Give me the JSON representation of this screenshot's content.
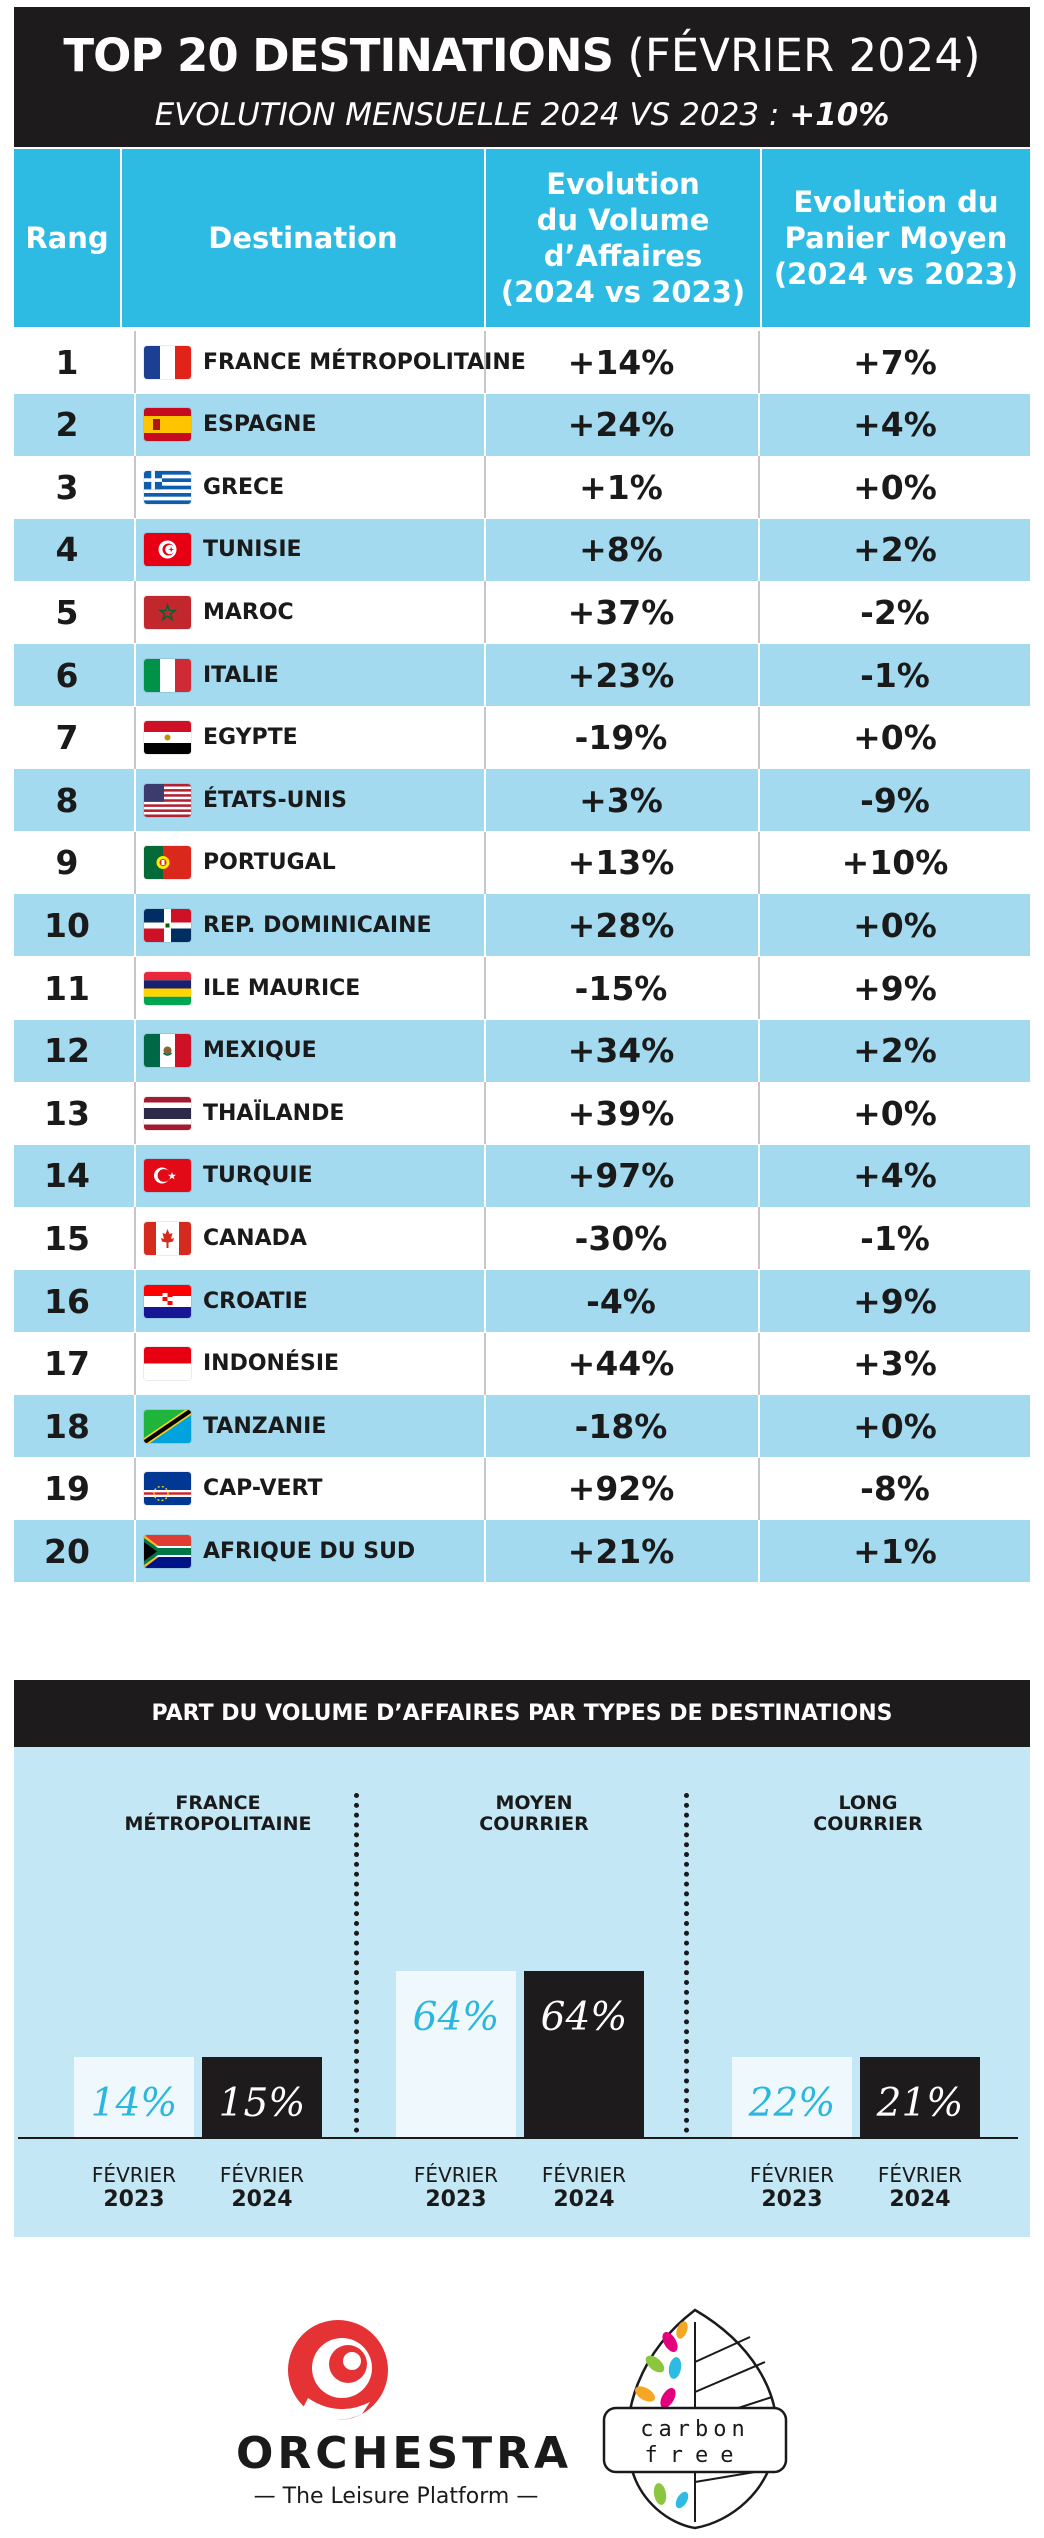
{
  "header": {
    "title_strong": "TOP 20 DESTINATIONS",
    "title_rest": "(FÉVRIER 2024)",
    "subtitle": "EVOLUTION MENSUELLE 2024 VS 2023 :",
    "subtitle_value": "+10%"
  },
  "table": {
    "headers": {
      "rank": "Rang",
      "destination": "Destination",
      "volume": "Evolution\ndu Volume\nd’Affaires\n(2024 vs 2023)",
      "panier": "Evolution du\nPanier Moyen\n(2024 vs 2023)"
    },
    "rows": [
      {
        "rank": "1",
        "flag": "france-flag-icon",
        "name": "FRANCE MÉTROPOLITAINE",
        "volume": "+14%",
        "panier": "+7%"
      },
      {
        "rank": "2",
        "flag": "spain-flag-icon",
        "name": "ESPAGNE",
        "volume": "+24%",
        "panier": "+4%"
      },
      {
        "rank": "3",
        "flag": "greece-flag-icon",
        "name": "GRECE",
        "volume": "+1%",
        "panier": "+0%"
      },
      {
        "rank": "4",
        "flag": "tunisia-flag-icon",
        "name": "TUNISIE",
        "volume": "+8%",
        "panier": "+2%"
      },
      {
        "rank": "5",
        "flag": "morocco-flag-icon",
        "name": "MAROC",
        "volume": "+37%",
        "panier": "-2%"
      },
      {
        "rank": "6",
        "flag": "italy-flag-icon",
        "name": "ITALIE",
        "volume": "+23%",
        "panier": "-1%"
      },
      {
        "rank": "7",
        "flag": "egypt-flag-icon",
        "name": "EGYPTE",
        "volume": "-19%",
        "panier": "+0%"
      },
      {
        "rank": "8",
        "flag": "usa-flag-icon",
        "name": "ÉTATS-UNIS",
        "volume": "+3%",
        "panier": "-9%"
      },
      {
        "rank": "9",
        "flag": "portugal-flag-icon",
        "name": "PORTUGAL",
        "volume": "+13%",
        "panier": "+10%"
      },
      {
        "rank": "10",
        "flag": "dominican-flag-icon",
        "name": "REP. DOMINICAINE",
        "volume": "+28%",
        "panier": "+0%"
      },
      {
        "rank": "11",
        "flag": "mauritius-flag-icon",
        "name": "ILE MAURICE",
        "volume": "-15%",
        "panier": "+9%"
      },
      {
        "rank": "12",
        "flag": "mexico-flag-icon",
        "name": "MEXIQUE",
        "volume": "+34%",
        "panier": "+2%"
      },
      {
        "rank": "13",
        "flag": "thailand-flag-icon",
        "name": "THAÏLANDE",
        "volume": "+39%",
        "panier": "+0%"
      },
      {
        "rank": "14",
        "flag": "turkey-flag-icon",
        "name": "TURQUIE",
        "volume": "+97%",
        "panier": "+4%"
      },
      {
        "rank": "15",
        "flag": "canada-flag-icon",
        "name": "CANADA",
        "volume": "-30%",
        "panier": "-1%"
      },
      {
        "rank": "16",
        "flag": "croatia-flag-icon",
        "name": "CROATIE",
        "volume": "-4%",
        "panier": "+9%"
      },
      {
        "rank": "17",
        "flag": "indonesia-flag-icon",
        "name": "INDONÉSIE",
        "volume": "+44%",
        "panier": "+3%"
      },
      {
        "rank": "18",
        "flag": "tanzania-flag-icon",
        "name": "TANZANIE",
        "volume": "-18%",
        "panier": "+0%"
      },
      {
        "rank": "19",
        "flag": "capeverde-flag-icon",
        "name": "CAP-VERT",
        "volume": "+92%",
        "panier": "-8%"
      },
      {
        "rank": "20",
        "flag": "southafrica-flag-icon",
        "name": "AFRIQUE DU SUD",
        "volume": "+21%",
        "panier": "+1%"
      }
    ]
  },
  "chart_data": {
    "type": "bar",
    "title": "PART DU VOLUME D’AFFAIRES PAR TYPES DE DESTINATIONS",
    "groups": [
      "FRANCE\nMÉTROPOLITAINE",
      "MOYEN\nCOURRIER",
      "LONG\nCOURRIER"
    ],
    "series": [
      {
        "name": "FÉVRIER 2023",
        "values": [
          14,
          64,
          22
        ],
        "labels": [
          "14%",
          "64%",
          "22%"
        ],
        "color": "#eef8fd"
      },
      {
        "name": "FÉVRIER 2024",
        "values": [
          15,
          64,
          21
        ],
        "labels": [
          "15%",
          "64%",
          "21%"
        ],
        "color": "#1e1b1d"
      }
    ],
    "x_labels": [
      {
        "month": "FÉVRIER",
        "year": "2023"
      },
      {
        "month": "FÉVRIER",
        "year": "2024"
      }
    ],
    "ylim": [
      0,
      100
    ],
    "legend": "none",
    "grid": false
  },
  "footer": {
    "brand": "ORCHESTRA",
    "tagline": "— The Leisure Platform —",
    "carbon_line1": "carbon",
    "carbon_line2": "free"
  },
  "colors": {
    "dark": "#1e1b1d",
    "accent": "#2dbbe4",
    "row_alt": "#a3daf0",
    "panel": "#c4e7f5",
    "brand_red": "#e53234"
  }
}
